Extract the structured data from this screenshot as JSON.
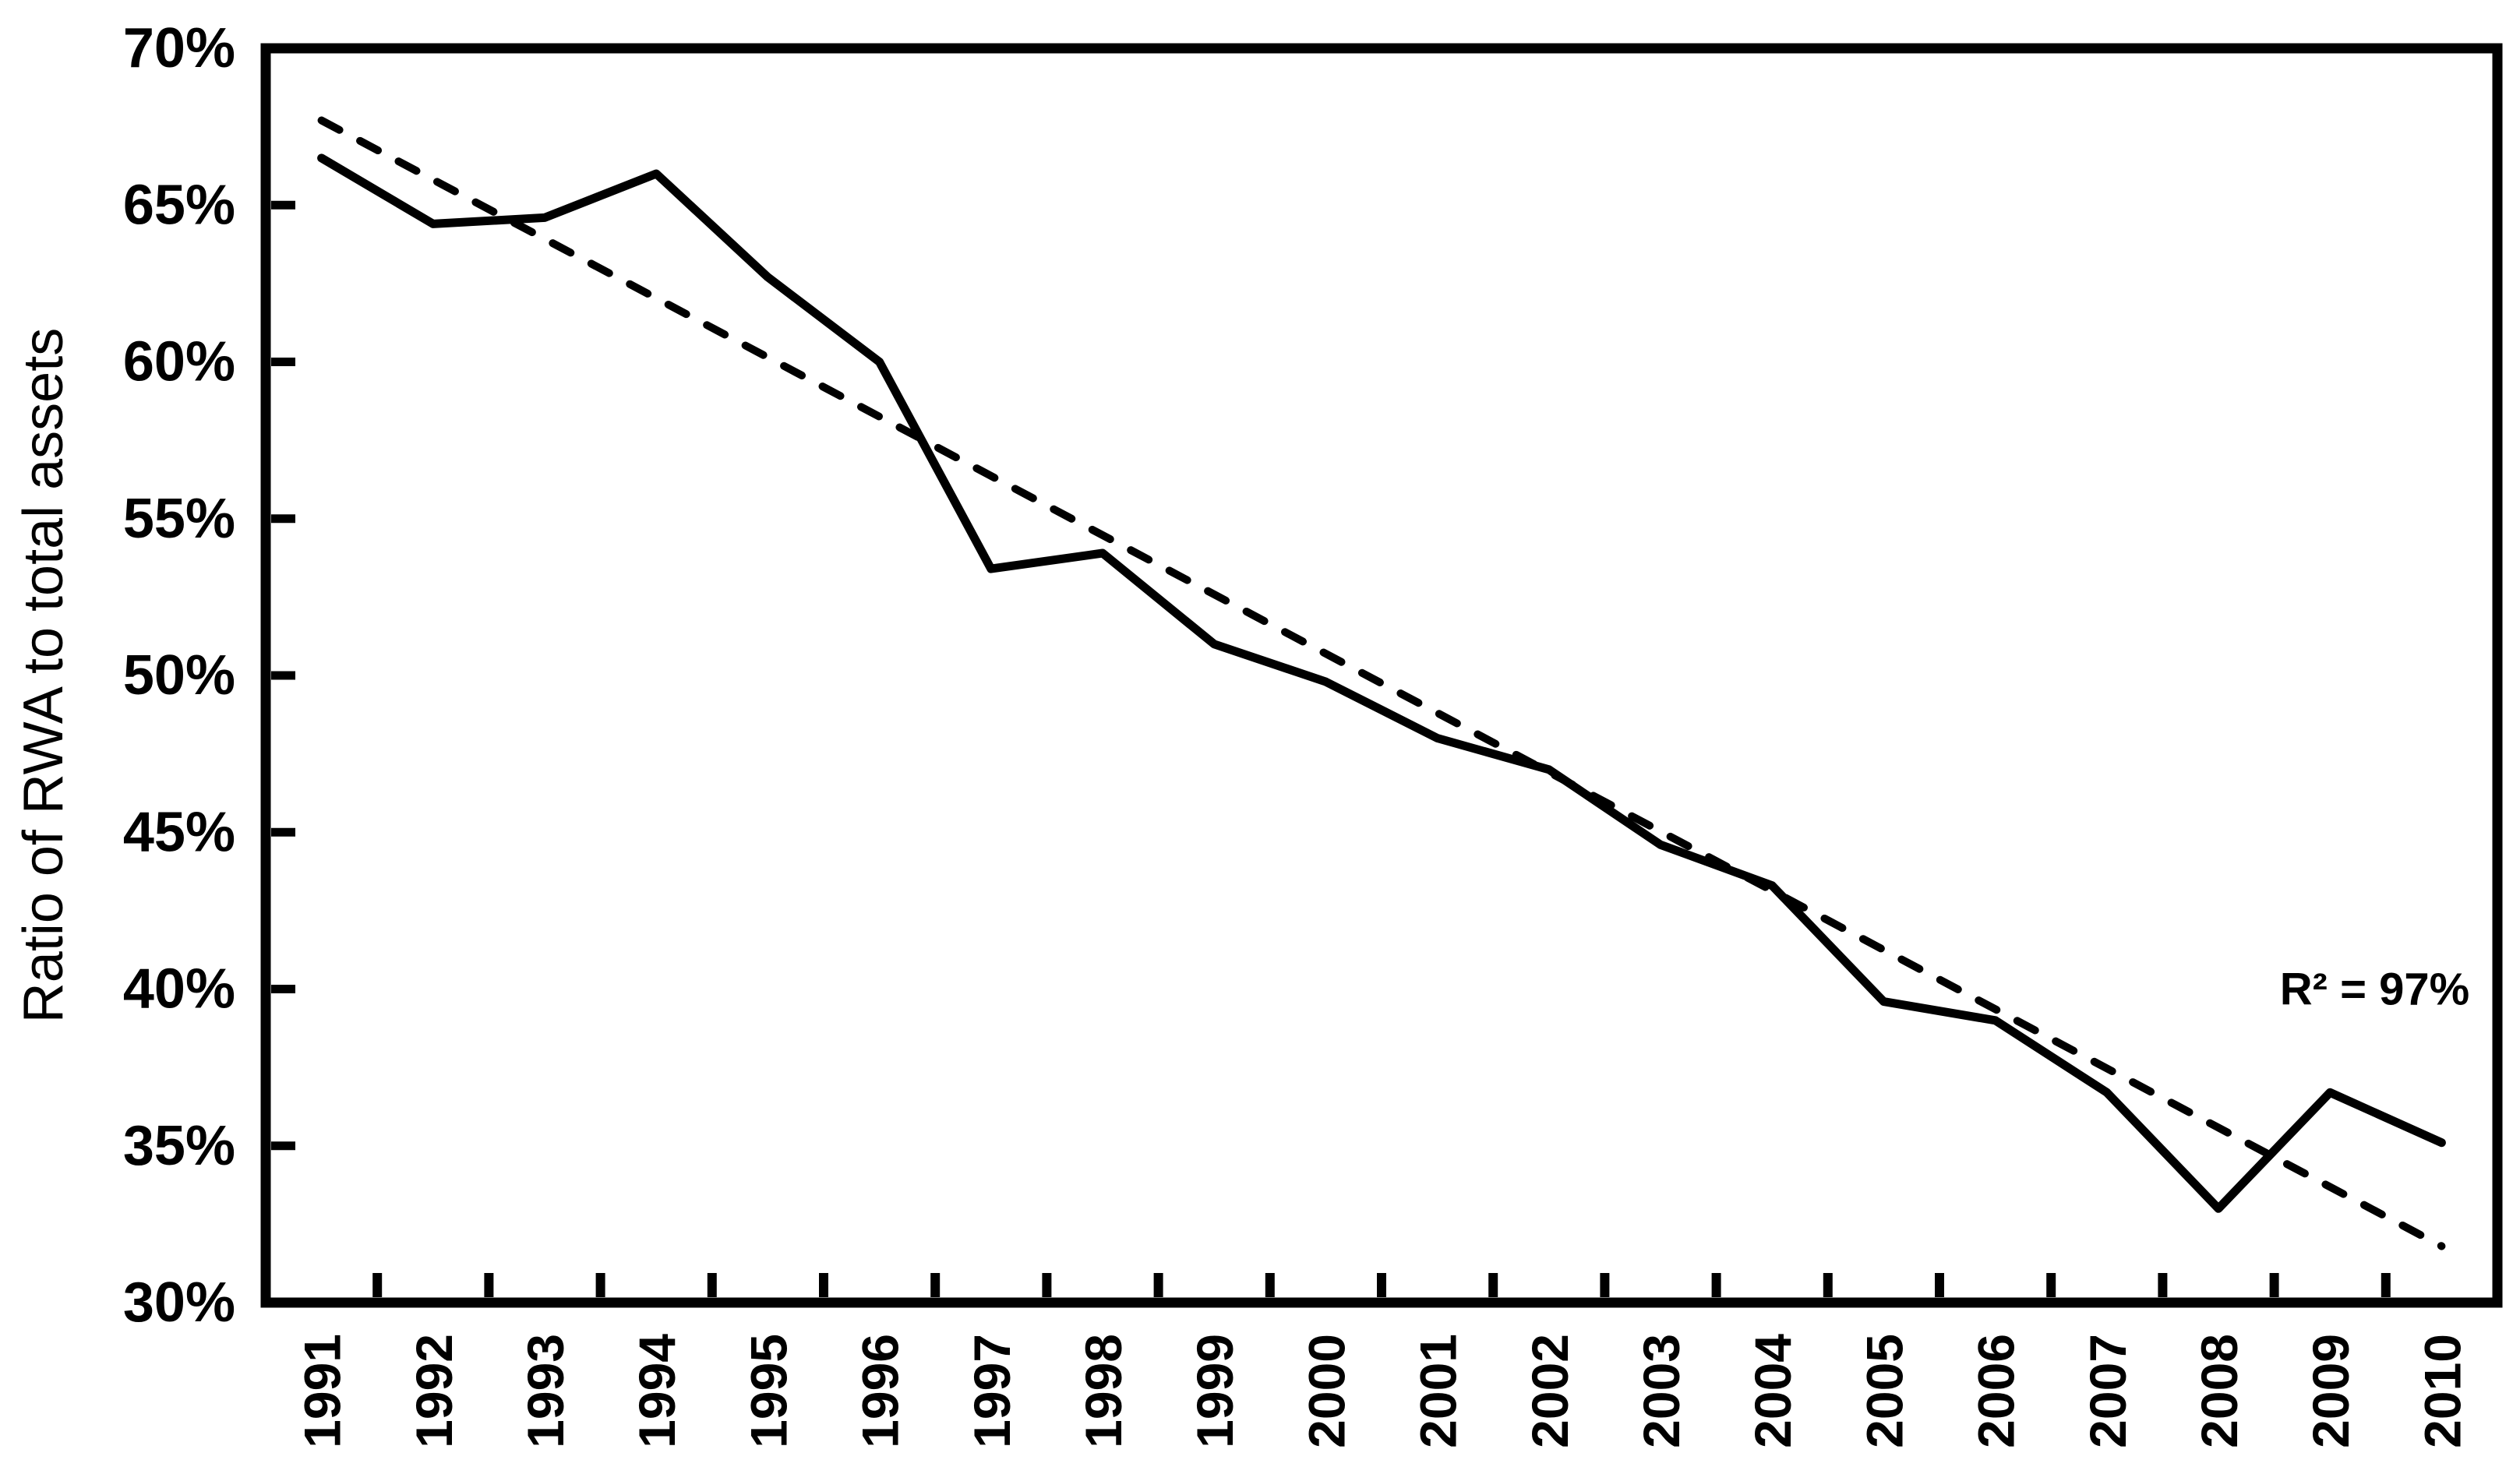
{
  "chart_data": {
    "type": "line",
    "title": "",
    "xlabel": "",
    "ylabel": "Ratio of RWA to total assets",
    "ylim": [
      30,
      70
    ],
    "ytick_step": 5,
    "ytick_suffix": "%",
    "grid": false,
    "legend": "none",
    "x": [
      1991,
      1992,
      1993,
      1994,
      1995,
      1996,
      1997,
      1998,
      1999,
      2000,
      2001,
      2002,
      2003,
      2004,
      2005,
      2006,
      2007,
      2008,
      2009,
      2010
    ],
    "series": [
      {
        "name": "Ratio of RWA to total assets",
        "style": "solid",
        "color": "#000000",
        "values": [
          66.5,
          64.4,
          64.6,
          66.0,
          62.7,
          60.0,
          53.4,
          53.9,
          51.0,
          49.8,
          48.0,
          47.0,
          44.6,
          43.3,
          39.6,
          39.0,
          36.7,
          33.0,
          36.7,
          35.1
        ]
      },
      {
        "name": "Linear trend",
        "style": "dashed",
        "color": "#000000",
        "trend_endpoints": {
          "start_value": 67.7,
          "end_value": 31.8
        }
      }
    ],
    "annotation": {
      "text": "R² = 97%",
      "anchor_value_x": 2009.4,
      "anchor_value_y": 40.0
    }
  }
}
